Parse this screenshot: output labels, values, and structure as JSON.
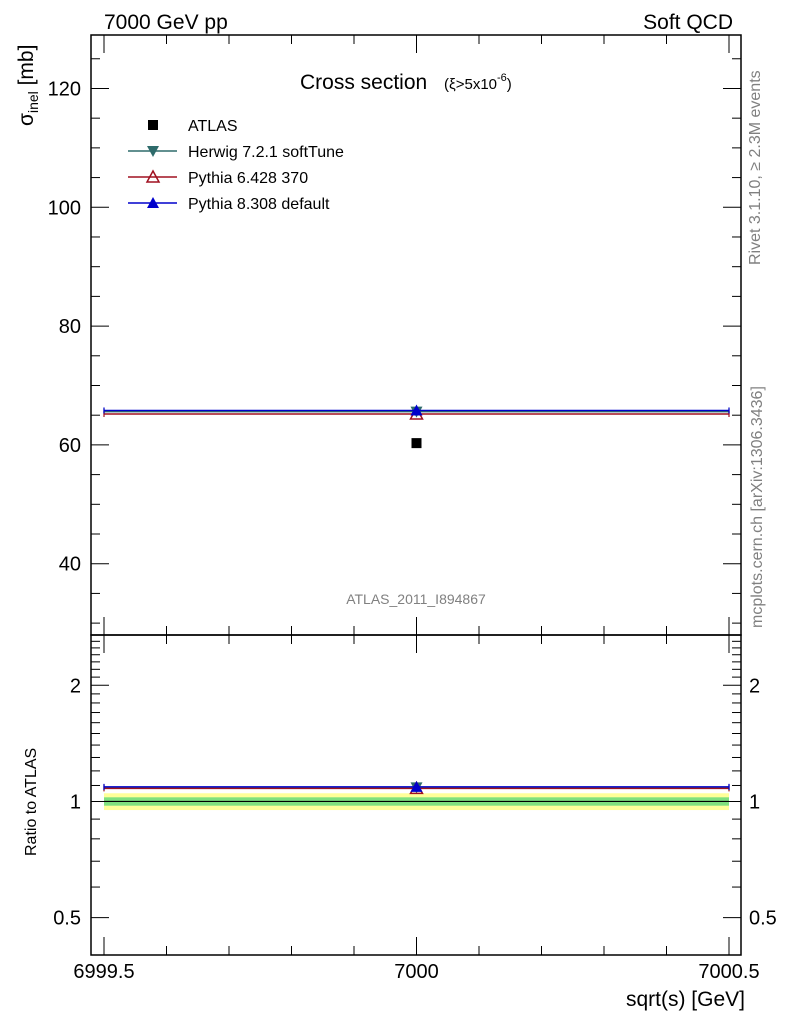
{
  "header": {
    "left": "7000 GeV pp",
    "right": "Soft QCD"
  },
  "side_text": {
    "rivet": "Rivet 3.1.10, ≥ 2.3M events",
    "mcplots": "mcplots.cern.ch [arXiv:1306.3436]"
  },
  "colors": {
    "atlas": "#000000",
    "herwig": "#2e6b6b",
    "pythia6": "#a01020",
    "pythia8": "#0000cc",
    "band_inner": "#7fe07f",
    "band_outer": "#ffff99"
  },
  "chart_data": [
    {
      "type": "scatter",
      "title_main": "Cross section",
      "title_sub_prefix": "(ξ>5x10",
      "title_sub_exp": "-6",
      "title_sub_suffix": ")",
      "ylabel_main": "σ",
      "ylabel_sub": "inel",
      "ylabel_unit": " [mb]",
      "xlim": [
        6999.5,
        7000.5
      ],
      "ylim": [
        28,
        129
      ],
      "yticks": [
        40,
        60,
        80,
        100,
        120
      ],
      "watermark": "ATLAS_2011_I894867",
      "legend_position": "top-left",
      "series": [
        {
          "name": "ATLAS",
          "marker": "square",
          "x": [
            7000
          ],
          "y": [
            60.3
          ]
        },
        {
          "name": "Herwig 7.2.1 softTune",
          "marker": "triangle-down",
          "x": [
            7000
          ],
          "y": [
            65.6
          ],
          "xrange": [
            6999.5,
            7000.5
          ]
        },
        {
          "name": "Pythia 6.428 370",
          "marker": "triangle-up-open",
          "x": [
            7000
          ],
          "y": [
            65.2
          ],
          "xrange": [
            6999.5,
            7000.5
          ]
        },
        {
          "name": "Pythia 8.308 default",
          "marker": "triangle-up",
          "x": [
            7000
          ],
          "y": [
            65.8
          ],
          "xrange": [
            6999.5,
            7000.5
          ]
        }
      ]
    },
    {
      "type": "scatter",
      "ylabel": "Ratio to ATLAS",
      "xlabel": "sqrt(s) [GeV]",
      "xlim": [
        6999.5,
        7000.5
      ],
      "xticks": [
        "6999.5",
        "7000",
        "7000.5"
      ],
      "ylim": [
        0.4,
        2.7
      ],
      "yticks": [
        "0.5",
        "1",
        "2"
      ],
      "ytick_values": [
        0.5,
        1,
        2
      ],
      "log_y": true,
      "band_inner": [
        0.975,
        1.025
      ],
      "band_outer": [
        0.95,
        1.05
      ],
      "series": [
        {
          "name": "Herwig 7.2.1 softTune",
          "x": [
            7000
          ],
          "y": [
            1.088
          ]
        },
        {
          "name": "Pythia 6.428 370",
          "x": [
            7000
          ],
          "y": [
            1.081
          ]
        },
        {
          "name": "Pythia 8.308 default",
          "x": [
            7000
          ],
          "y": [
            1.091
          ]
        }
      ]
    }
  ]
}
